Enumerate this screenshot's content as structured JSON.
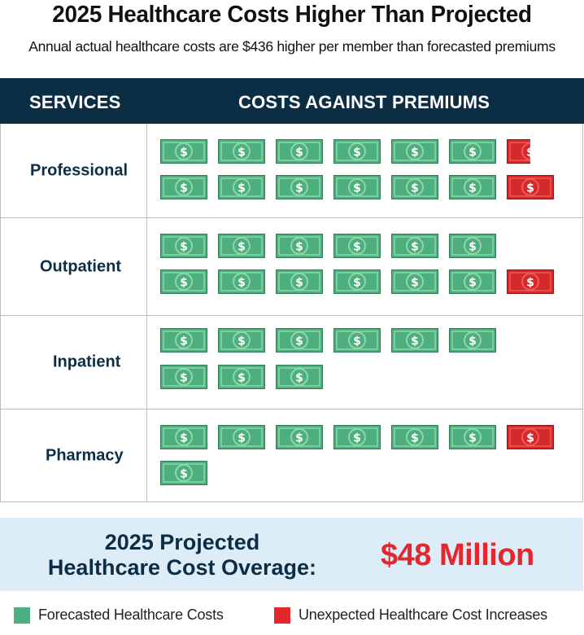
{
  "title": "2025 Healthcare Costs Higher Than Projected",
  "subtitle": "Annual actual healthcare costs are $436 higher per member than forecasted premiums",
  "table": {
    "header_services": "SERVICES",
    "header_costs": "COSTS AGAINST PREMIUMS",
    "rows": [
      {
        "label": "Professional",
        "row1_forecasted": 6,
        "row1_unexpected": 0.5,
        "row2_forecasted": 6,
        "row2_unexpected": 1
      },
      {
        "label": "Outpatient",
        "row1_forecasted": 6,
        "row1_unexpected": 0,
        "row2_forecasted": 6,
        "row2_unexpected": 1
      },
      {
        "label": "Inpatient",
        "row1_forecasted": 6,
        "row1_unexpected": 0,
        "row2_forecasted": 3,
        "row2_unexpected": 0
      },
      {
        "label": "Pharmacy",
        "row1_forecasted": 6,
        "row1_unexpected": 1,
        "row2_forecasted": 1,
        "row2_unexpected": 0
      }
    ]
  },
  "summary": {
    "label_line1": "2025 Projected",
    "label_line2": "Healthcare Cost Overage:",
    "value": "$48 Million"
  },
  "legend": {
    "forecasted": "Forecasted  Healthcare Costs",
    "unexpected": "Unexpected Healthcare Cost Increases"
  },
  "colors": {
    "header_bg": "#0c2e45",
    "label_text": "#0c2e45",
    "forecasted_green": "#4caf7d",
    "unexpected_red": "#e4272e",
    "summary_bg": "#dcedf8",
    "summary_value": "#e4272e"
  },
  "icons": {
    "bill": "dollar-bill-icon"
  }
}
